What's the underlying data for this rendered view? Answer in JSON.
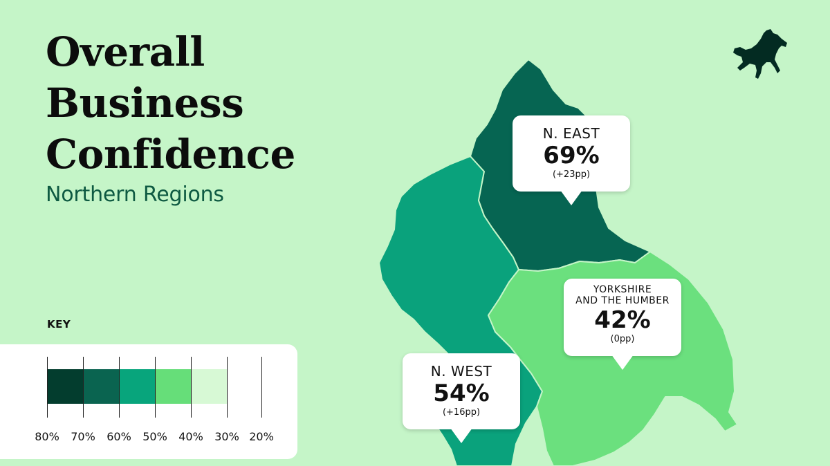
{
  "title": {
    "line1": "Overall",
    "line2": "Business",
    "line3": "Confidence"
  },
  "subtitle": "Northern Regions",
  "key": {
    "label": "KEY",
    "ticks": [
      "80%",
      "70%",
      "60%",
      "50%",
      "40%",
      "30%",
      "20%"
    ],
    "swatch_colors": [
      "#033d2e",
      "#0a6450",
      "#08a57c",
      "#66de79",
      "#d7f9d5"
    ]
  },
  "regions": [
    {
      "name": "N. EAST",
      "value": "69%",
      "change": "(+23pp)",
      "color": "#066552"
    },
    {
      "name_line1": "YORKSHIRE",
      "name_line2": "AND THE HUMBER",
      "value": "42%",
      "change": "(0pp)",
      "color": "#6be07e"
    },
    {
      "name": "N. WEST",
      "value": "54%",
      "change": "(+16pp)",
      "color": "#0aa27c"
    }
  ],
  "logo_icon": "black-horse-icon"
}
